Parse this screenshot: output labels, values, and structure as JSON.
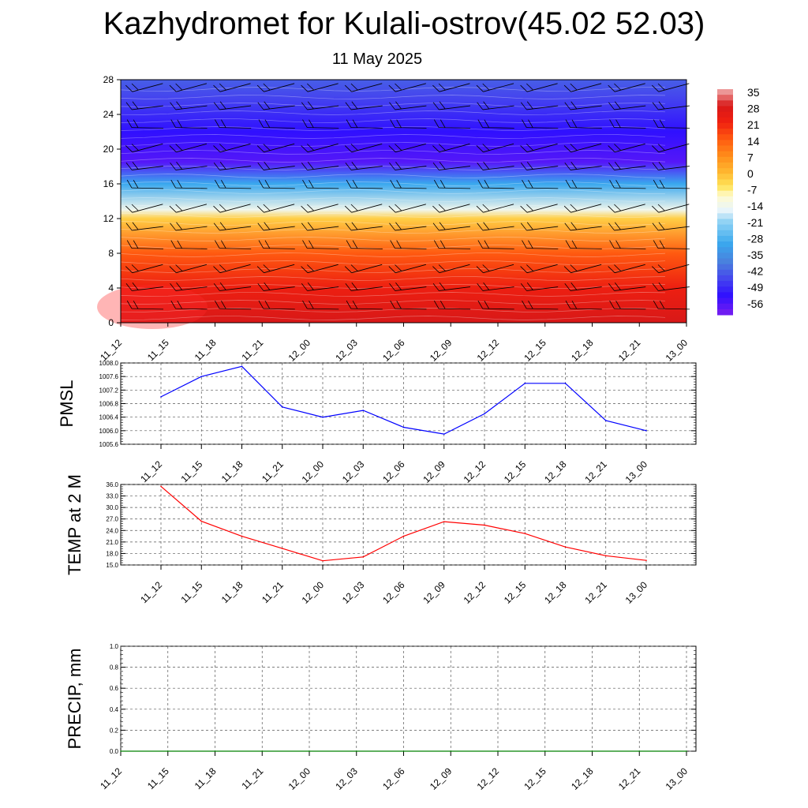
{
  "header": {
    "title": "Kazhydromet for Kulali-ostrov(45.02 52.03)",
    "subtitle": "11 May 2025"
  },
  "time_labels": [
    "11_12",
    "11_15",
    "11_18",
    "11_21",
    "12_00",
    "12_03",
    "12_06",
    "12_09",
    "12_12",
    "12_15",
    "12_18",
    "12_21",
    "13_00"
  ],
  "colors": {
    "pmsl_line": "#0000ff",
    "temp_line": "#ff0000",
    "precip_line": "#008000",
    "grid": "#555555"
  },
  "chart_data": [
    {
      "type": "heatmap",
      "name": "temperature-profile",
      "xlabel": "",
      "ylabel": "",
      "x": [
        "11_12",
        "11_15",
        "11_18",
        "11_21",
        "12_00",
        "12_03",
        "12_06",
        "12_09",
        "12_12",
        "12_15",
        "12_18",
        "12_21",
        "13_00"
      ],
      "y_ticks": [
        0,
        4,
        8,
        12,
        16,
        20,
        24,
        28
      ],
      "ylim": [
        0,
        28
      ],
      "colorbar_labels": [
        "35",
        "28",
        "21",
        "14",
        "7",
        "0",
        "-7",
        "-14",
        "-21",
        "-28",
        "-35",
        "-42",
        "-49",
        "-56"
      ],
      "profile": [
        {
          "level": 0,
          "value": 28
        },
        {
          "level": 4,
          "value": 22
        },
        {
          "level": 8,
          "value": 14
        },
        {
          "level": 12,
          "value": -3
        },
        {
          "level": 13,
          "value": -14
        },
        {
          "level": 16,
          "value": -30
        },
        {
          "level": 18.5,
          "value": -56
        },
        {
          "level": 22,
          "value": -52
        },
        {
          "level": 26,
          "value": -45
        },
        {
          "level": 28,
          "value": -42
        }
      ],
      "wind_barbs": true,
      "grid": false
    },
    {
      "type": "line",
      "ylabel": "PMSL",
      "x": [
        "11_12",
        "11_15",
        "11_18",
        "11_21",
        "12_00",
        "12_03",
        "12_06",
        "12_09",
        "12_12",
        "12_15",
        "12_18",
        "12_21",
        "13_00"
      ],
      "series": [
        {
          "values": [
            1007.0,
            1007.6,
            1007.9,
            1006.7,
            1006.4,
            1006.6,
            1006.1,
            1005.9,
            1006.5,
            1007.4,
            1007.4,
            1006.3,
            1006.0
          ]
        }
      ],
      "ylim": [
        1005.6,
        1008.0
      ],
      "yticks": [
        "1005.6",
        "1006.0",
        "1006.4",
        "1006.8",
        "1007.2",
        "1007.6",
        "1008.0"
      ],
      "grid": true
    },
    {
      "type": "line",
      "ylabel": "TEMP at 2 M",
      "x": [
        "11_12",
        "11_15",
        "11_18",
        "11_21",
        "12_00",
        "12_03",
        "12_06",
        "12_09",
        "12_12",
        "12_15",
        "12_18",
        "12_21",
        "13_00"
      ],
      "series": [
        {
          "values": [
            35.5,
            26.4,
            22.5,
            19.3,
            16.1,
            17.1,
            22.5,
            26.3,
            25.4,
            23.2,
            19.7,
            17.4,
            16.2
          ]
        }
      ],
      "ylim": [
        15.0,
        36.0
      ],
      "yticks": [
        "15.0",
        "18.0",
        "21.0",
        "24.0",
        "27.0",
        "30.0",
        "33.0",
        "36.0"
      ],
      "grid": true
    },
    {
      "type": "line",
      "ylabel": "PRECIP, mm",
      "x": [
        "11_12",
        "11_15",
        "11_18",
        "11_21",
        "12_00",
        "12_03",
        "12_06",
        "12_09",
        "12_12",
        "12_15",
        "12_18",
        "12_21",
        "13_00"
      ],
      "series": [
        {
          "values": [
            0,
            0,
            0,
            0,
            0,
            0,
            0,
            0,
            0,
            0,
            0,
            0,
            0
          ]
        }
      ],
      "ylim": [
        0.0,
        1.0
      ],
      "yticks": [
        "0.0",
        "0.2",
        "0.4",
        "0.6",
        "0.8",
        "1.0"
      ],
      "grid": true
    }
  ]
}
